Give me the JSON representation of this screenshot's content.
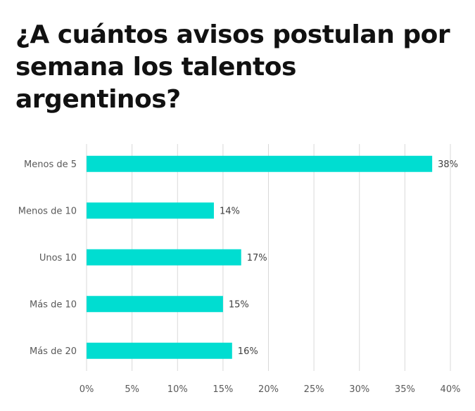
{
  "title": "¿A cuántos avisos postulan por semana los talentos argentinos?",
  "chart_data": {
    "type": "bar",
    "orientation": "horizontal",
    "title": "¿A cuántos avisos postulan por semana los talentos argentinos?",
    "categories": [
      "Menos de 5",
      "Menos de 10",
      "Unos 10",
      "Más de 10",
      "Más de 20"
    ],
    "values": [
      38,
      14,
      17,
      15,
      16
    ],
    "value_labels": [
      "38%",
      "14%",
      "17%",
      "15%",
      "16%"
    ],
    "xlim": [
      0,
      40
    ],
    "ticks": [
      0,
      5,
      10,
      15,
      20,
      25,
      30,
      35,
      40
    ],
    "tick_labels": [
      "0%",
      "5%",
      "10%",
      "15%",
      "20%",
      "25%",
      "30%",
      "35%",
      "40%"
    ],
    "xlabel": "",
    "ylabel": "",
    "grid": true,
    "bar_color": "#00DDD1",
    "grid_color": "#D9D9D9"
  }
}
